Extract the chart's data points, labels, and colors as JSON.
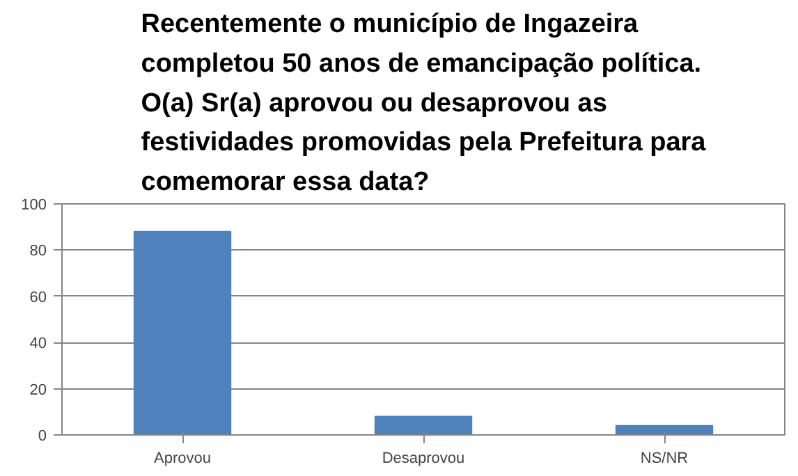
{
  "chart_data": {
    "type": "bar",
    "title": "Recentemente o município de Ingazeira completou 50 anos de emancipação política. O(a) Sr(a) aprovou ou desaprovou as festividades promovidas pela Prefeitura para comemorar essa data?",
    "categories": [
      "Aprovou",
      "Desaprovou",
      "NS/NR"
    ],
    "values": [
      88,
      8,
      4
    ],
    "color": "#4f81bd",
    "ylim": [
      0,
      100
    ],
    "yticks": [
      0,
      20,
      40,
      60,
      80,
      100
    ],
    "grid": "y"
  }
}
